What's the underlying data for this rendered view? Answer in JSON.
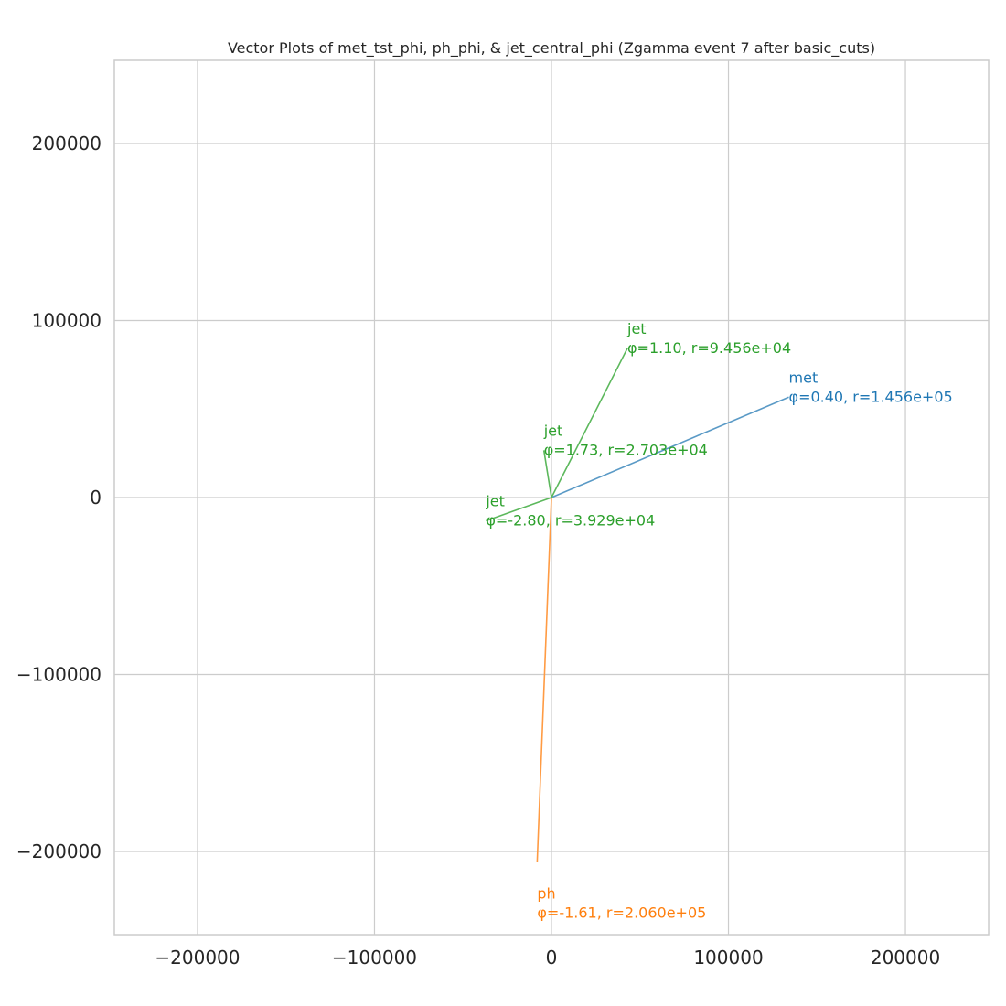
{
  "chart_data": {
    "type": "vector",
    "title": "Vector Plots of met_tst_phi, ph_phi, & jet_central_phi (Zgamma event 7 after basic_cuts)",
    "xlabel": "",
    "ylabel": "",
    "xlim": [
      -247000,
      247000
    ],
    "ylim": [
      -247000,
      247000
    ],
    "xticks": [
      -200000,
      -100000,
      0,
      100000,
      200000
    ],
    "yticks": [
      -200000,
      -100000,
      0,
      100000,
      200000
    ],
    "xtick_labels": [
      "−200000",
      "−100000",
      "0",
      "100000",
      "200000"
    ],
    "ytick_labels": [
      "−200000",
      "−100000",
      "0",
      "100000",
      "200000"
    ],
    "grid": true,
    "vectors": [
      {
        "name": "met",
        "phi": 0.4,
        "r": 145600,
        "color": "#1f77b4",
        "line_color": "#5a9ac6",
        "label_line1": "met",
        "label_line2": "φ=0.40, r=1.456e+05"
      },
      {
        "name": "ph",
        "phi": -1.61,
        "r": 206000,
        "color": "#ff7f0e",
        "line_color": "#ff9b43",
        "label_line1": "ph",
        "label_line2": "φ=-1.61, r=2.060e+05"
      },
      {
        "name": "jet",
        "phi": 1.1,
        "r": 94560,
        "color": "#2ca02c",
        "line_color": "#5cb85c",
        "label_line1": "jet",
        "label_line2": "φ=1.10, r=9.456e+04"
      },
      {
        "name": "jet",
        "phi": 1.73,
        "r": 27030,
        "color": "#2ca02c",
        "line_color": "#5cb85c",
        "label_line1": "jet",
        "label_line2": "φ=1.73, r=2.703e+04"
      },
      {
        "name": "jet",
        "phi": -2.8,
        "r": 39290,
        "color": "#2ca02c",
        "line_color": "#5cb85c",
        "label_line1": "jet",
        "label_line2": "φ=-2.80, r=3.929e+04"
      }
    ]
  }
}
